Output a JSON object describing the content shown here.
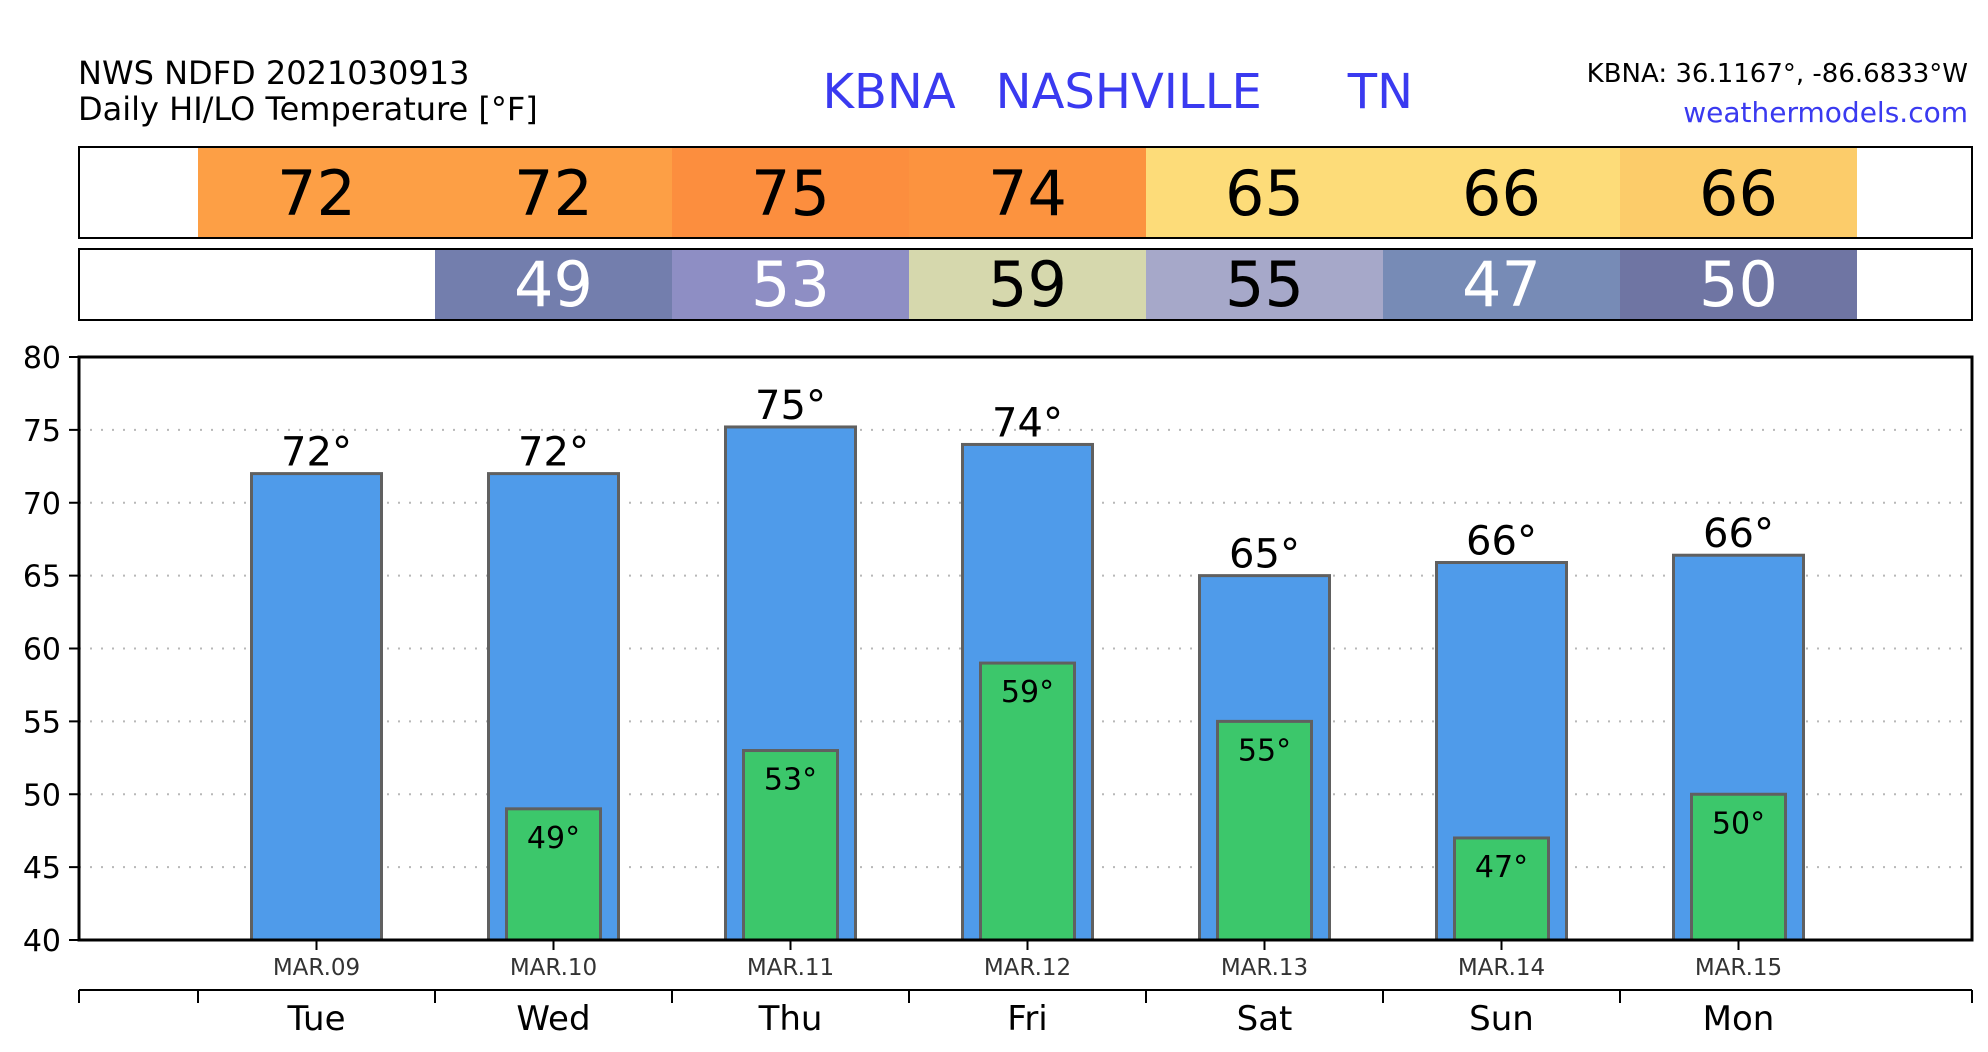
{
  "header": {
    "source": "NWS NDFD 2021030913",
    "subtitle": "Daily HI/LO Temperature [°F]",
    "station_id": "KBNA",
    "station_name": "NASHVILLE",
    "state": "TN",
    "coords": "KBNA: 36.1167°, -86.6833°W",
    "website": "weathermodels.com"
  },
  "chart_data": {
    "type": "bar",
    "days": [
      "Tue",
      "Wed",
      "Thu",
      "Fri",
      "Sat",
      "Sun",
      "Mon"
    ],
    "dates": [
      "MAR.09",
      "MAR.10",
      "MAR.11",
      "MAR.12",
      "MAR.13",
      "MAR.14",
      "MAR.15"
    ],
    "series": [
      {
        "name": "",
        "values": [
          72,
          72,
          75.2,
          74,
          65,
          65.9,
          66.4
        ],
        "labels": [
          "72°",
          "72°",
          "75°",
          "74°",
          "65°",
          "66°",
          "66°"
        ],
        "color": "#4f9bea"
      },
      {
        "name": "",
        "values": [
          null,
          49,
          53,
          59,
          55,
          47,
          50
        ],
        "labels": [
          "",
          "49°",
          "53°",
          "59°",
          "55°",
          "47°",
          "50°"
        ],
        "color": "#3cc76b"
      }
    ],
    "hi_strip": {
      "values": [
        "72",
        "72",
        "75",
        "74",
        "65",
        "66",
        "66"
      ],
      "colors": [
        "#fd9f45",
        "#fd9f45",
        "#fc8e3e",
        "#fc933f",
        "#fddc79",
        "#fddc79",
        "#fccc6a"
      ]
    },
    "lo_strip": {
      "values": [
        "",
        "49",
        "53",
        "59",
        "55",
        "47",
        "50"
      ],
      "colors": [
        "#ffffff",
        "#737ead",
        "#8e8ec4",
        "#d6d8ad",
        "#a6a8c9",
        "#778bb6",
        "#6f75a3"
      ],
      "text_colors": [
        "#000000",
        "#ffffff",
        "#ffffff",
        "#000000",
        "#000000",
        "#ffffff",
        "#ffffff"
      ]
    },
    "ylim": [
      40,
      80
    ],
    "yticks": [
      40,
      45,
      50,
      55,
      60,
      65,
      70,
      75,
      80
    ],
    "grid": true,
    "xlabel": "",
    "ylabel": ""
  }
}
